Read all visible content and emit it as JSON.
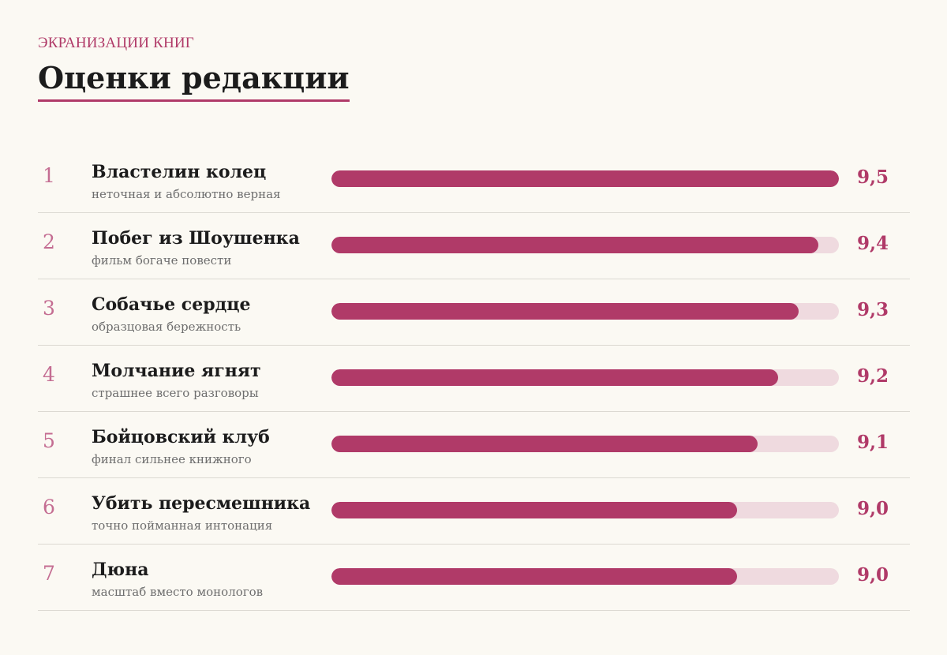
{
  "header": {
    "kicker": "ЭКРАНИЗАЦИИ КНИГ",
    "title": "Оценки редакции"
  },
  "colors": {
    "accent": "#b03a68",
    "track": "#efdadf",
    "rank": "#c46d92",
    "background": "#fbf9f3"
  },
  "chart_data": {
    "type": "bar",
    "orientation": "horizontal",
    "title": "Оценки редакции",
    "subtitle": "ЭКРАНИЗАЦИИ КНИГ",
    "xlim": [
      7.0,
      9.5
    ],
    "grid": false,
    "legend": "none",
    "categories": [
      "Властелин колец",
      "Побег из Шоушенка",
      "Собачье сердце",
      "Молчание ягнят",
      "Бойцовский клуб",
      "Убить пересмешника",
      "Дюна"
    ],
    "values": [
      9.5,
      9.4,
      9.3,
      9.2,
      9.1,
      9.0,
      9.0
    ],
    "items": [
      {
        "rank": "1",
        "name": "Властелин колец",
        "note": "неточная и абсолютно верная",
        "value": 9.5,
        "label": "9,5"
      },
      {
        "rank": "2",
        "name": "Побег из Шоушенка",
        "note": "фильм богаче повести",
        "value": 9.4,
        "label": "9,4"
      },
      {
        "rank": "3",
        "name": "Собачье сердце",
        "note": "образцовая бережность",
        "value": 9.3,
        "label": "9,3"
      },
      {
        "rank": "4",
        "name": "Молчание ягнят",
        "note": "страшнее всего разговоры",
        "value": 9.2,
        "label": "9,2"
      },
      {
        "rank": "5",
        "name": "Бойцовский клуб",
        "note": "финал сильнее книжного",
        "value": 9.1,
        "label": "9,1"
      },
      {
        "rank": "6",
        "name": "Убить пересмешника",
        "note": "точно пойманная интонация",
        "value": 9.0,
        "label": "9,0"
      },
      {
        "rank": "7",
        "name": "Дюна",
        "note": "масштаб вместо монологов",
        "value": 9.0,
        "label": "9,0"
      }
    ]
  }
}
